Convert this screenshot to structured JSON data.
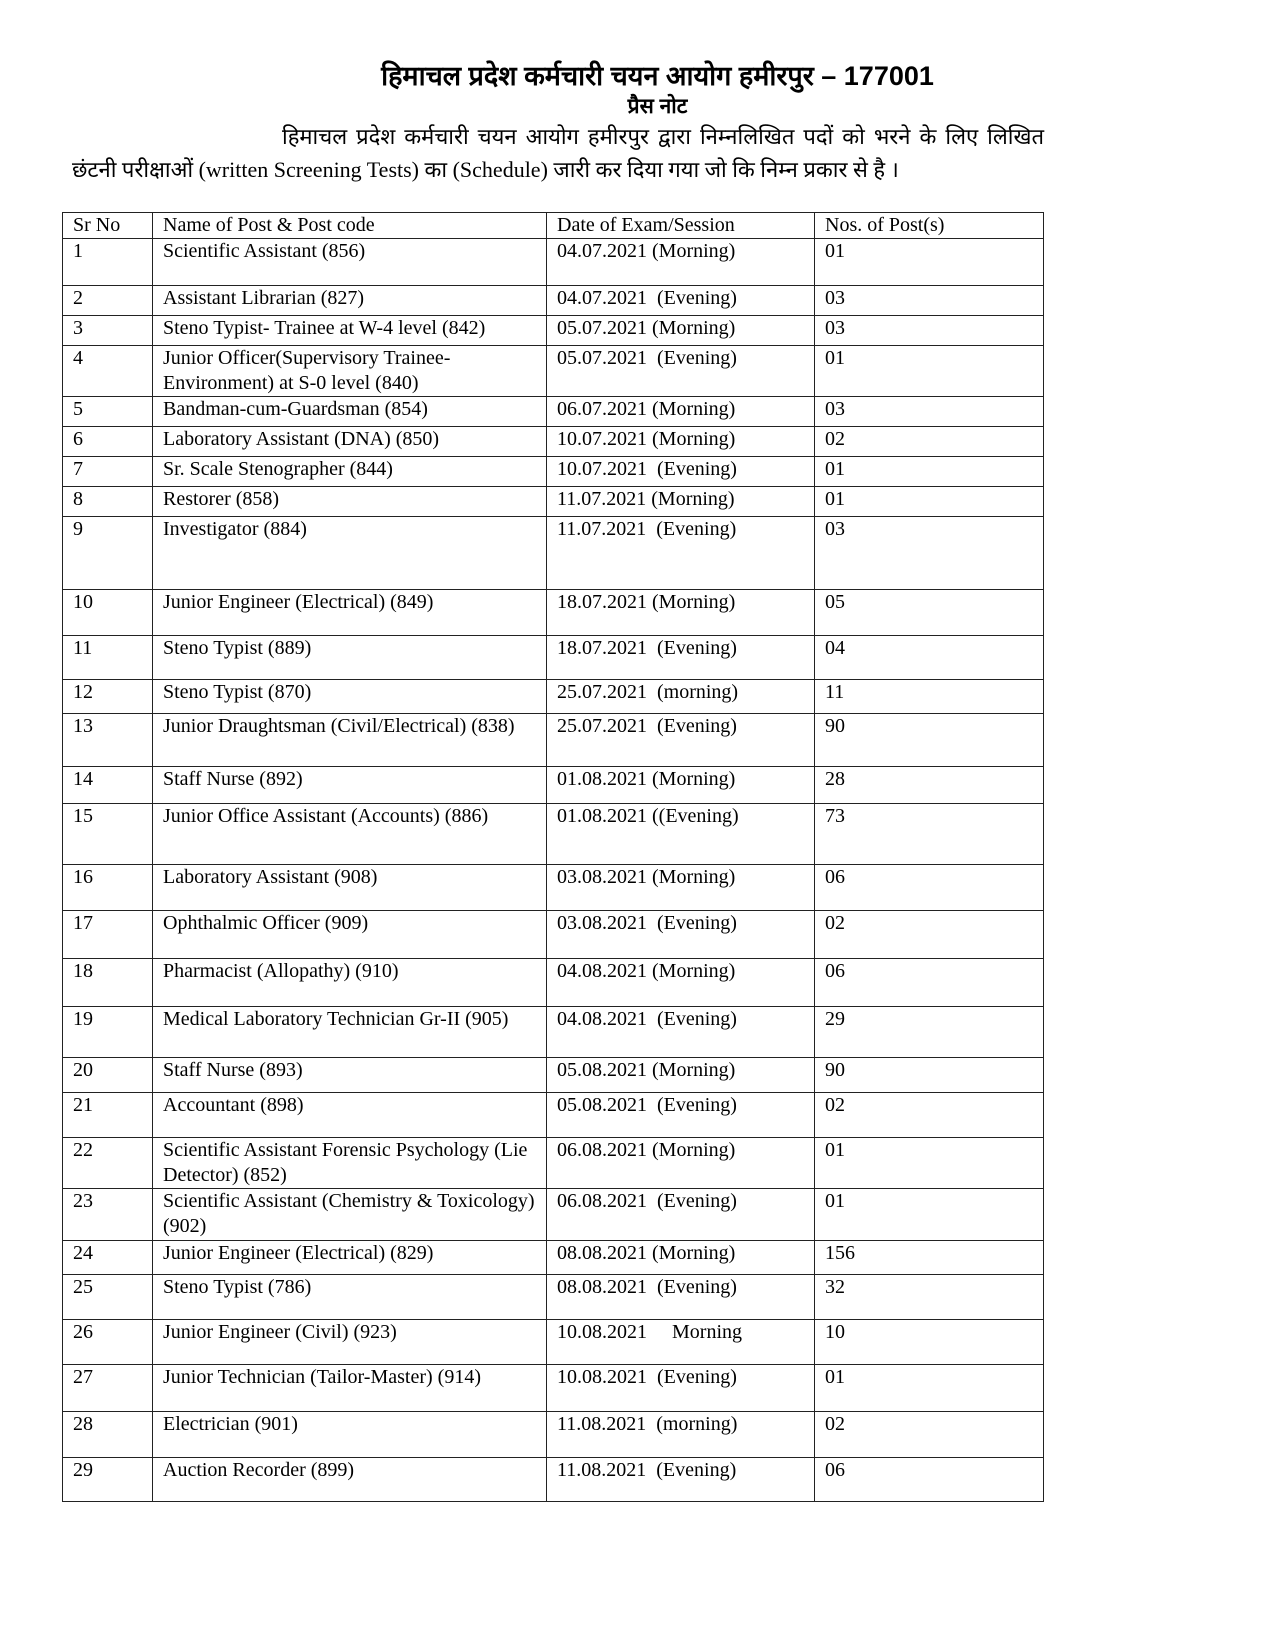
{
  "header": {
    "title": "हिमाचल प्रदेश कर्मचारी चयन आयोग हमीरपुर – 177001",
    "subtitle": "प्रैस नोट",
    "intro": "हिमाचल प्रदेश कर्मचारी चयन आयोग हमीरपुर द्वारा निम्नलिखित पदों को भरने के लिए लिखित छंटनी परीक्षाओं (written Screening Tests) का (Schedule) जारी कर दिया गया जो कि निम्न प्रकार से है ।"
  },
  "table": {
    "columns": [
      "Sr No",
      "Name of Post & Post code",
      "Date of Exam/Session",
      "Nos. of Post(s)"
    ],
    "rows": [
      [
        "1",
        "Scientific Assistant (856)",
        "04.07.2021 (Morning)",
        "01"
      ],
      [
        "2",
        "Assistant Librarian (827)",
        "04.07.2021  (Evening)",
        "03"
      ],
      [
        "3",
        "Steno Typist- Trainee at W-4 level (842)",
        "05.07.2021 (Morning)",
        "03"
      ],
      [
        "4",
        "Junior Officer(Supervisory Trainee-Environment) at S-0 level (840)",
        "05.07.2021  (Evening)",
        "01"
      ],
      [
        "5",
        "Bandman-cum-Guardsman (854)",
        "06.07.2021 (Morning)",
        "03"
      ],
      [
        "6",
        "Laboratory Assistant (DNA) (850)",
        "10.07.2021 (Morning)",
        "02"
      ],
      [
        "7",
        "Sr. Scale Stenographer (844)",
        "10.07.2021  (Evening)",
        "01"
      ],
      [
        "8",
        "Restorer (858)",
        "11.07.2021 (Morning)",
        "01"
      ],
      [
        "9",
        "Investigator (884)",
        "11.07.2021  (Evening)",
        "03"
      ],
      [
        "10",
        "Junior Engineer (Electrical) (849)",
        "18.07.2021 (Morning)",
        "05"
      ],
      [
        "11",
        "Steno Typist (889)",
        "18.07.2021  (Evening)",
        "04"
      ],
      [
        "12",
        "Steno Typist (870)",
        "25.07.2021  (morning)",
        "11"
      ],
      [
        "13",
        "Junior Draughtsman (Civil/Electrical) (838)",
        "25.07.2021  (Evening)",
        "90"
      ],
      [
        "14",
        "Staff Nurse (892)",
        "01.08.2021 (Morning)",
        "28"
      ],
      [
        "15",
        "Junior Office Assistant (Accounts) (886)",
        "01.08.2021 ((Evening)",
        "73"
      ],
      [
        "16",
        "Laboratory Assistant (908)",
        "03.08.2021 (Morning)",
        "06"
      ],
      [
        "17",
        "Ophthalmic Officer (909)",
        "03.08.2021  (Evening)",
        "02"
      ],
      [
        "18",
        "Pharmacist (Allopathy) (910)",
        "04.08.2021 (Morning)",
        "06"
      ],
      [
        "19",
        "Medical Laboratory Technician Gr-II (905)",
        "04.08.2021  (Evening)",
        "29"
      ],
      [
        "20",
        "Staff Nurse (893)",
        "05.08.2021 (Morning)",
        "90"
      ],
      [
        "21",
        "Accountant (898)",
        "05.08.2021  (Evening)",
        "02"
      ],
      [
        "22",
        "Scientific Assistant Forensic Psychology (Lie Detector) (852)",
        "06.08.2021 (Morning)",
        "01"
      ],
      [
        "23",
        "Scientific Assistant (Chemistry & Toxicology) (902)",
        "06.08.2021  (Evening)",
        "01"
      ],
      [
        "24",
        "Junior Engineer (Electrical) (829)",
        "08.08.2021 (Morning)",
        "156"
      ],
      [
        "25",
        "Steno Typist (786)",
        "08.08.2021  (Evening)",
        "32"
      ],
      [
        "26",
        "Junior Engineer (Civil) (923)",
        "10.08.2021     Morning",
        "10"
      ],
      [
        "27",
        "Junior Technician (Tailor-Master) (914)",
        "10.08.2021  (Evening)",
        "01"
      ],
      [
        "28",
        "Electrician (901)",
        "11.08.2021  (morning)",
        "02"
      ],
      [
        "29",
        "Auction Recorder (899)",
        "11.08.2021  (Evening)",
        "06"
      ]
    ]
  }
}
